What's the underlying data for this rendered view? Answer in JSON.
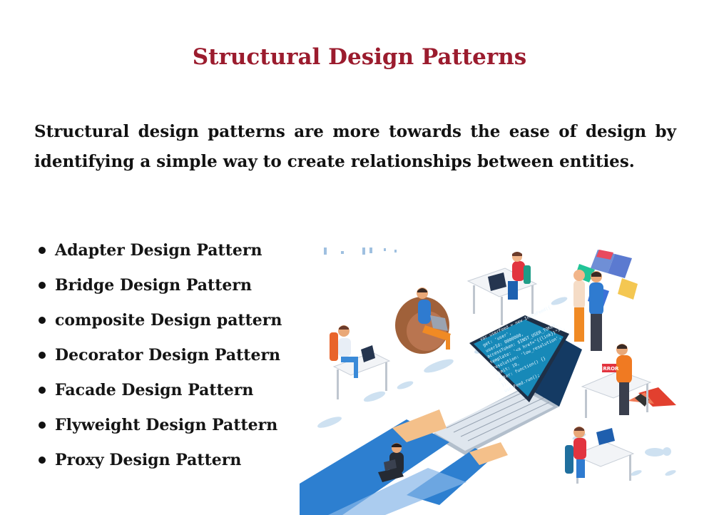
{
  "heading": "Structural Design Patterns",
  "intro": "Structural design patterns are more towards the ease of design by identifying a simple way to create relationships between entities.",
  "patterns": [
    "Adapter Design Pattern",
    "Bridge Design Pattern",
    "composite Design pattern",
    "Decorator Design Pattern",
    "Facade Design Pattern",
    "Flyweight Design Pattern",
    "Proxy Design Pattern"
  ],
  "illustration": {
    "error_badge": "ERROR",
    "code_lines": [
      "var userFeed = new InstaFeed({",
      "get: 'user',",
      "userId: 0000000,",
      "accessToken: $INST_USER_TOKEN,",
      "template: '<a href=\"{{link}}\">',",
      "resolution: 'low_resolution',",
      "limit: 10,",
      "after: function() {}",
      "});",
      "userFeed.run();"
    ]
  },
  "colors": {
    "heading": "#9b1c2e",
    "body_text": "#121212",
    "screen": "#1789b8",
    "sleeve": "#2d7fd0",
    "skin": "#f4c08a"
  }
}
